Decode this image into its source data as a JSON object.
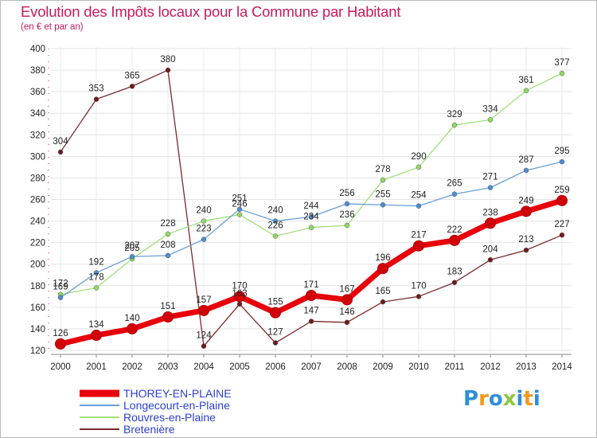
{
  "chart_data": {
    "type": "line",
    "title": "Evolution des Impôts locaux pour la Commune par Habitant",
    "subtitle": "(en € et par an)",
    "xlabel": "",
    "ylabel": "",
    "ylim": [
      120,
      400
    ],
    "yticks": [
      120,
      140,
      160,
      180,
      200,
      220,
      240,
      260,
      280,
      300,
      320,
      340,
      360,
      380,
      400
    ],
    "x": [
      "2000",
      "2001",
      "2002",
      "2003",
      "2004",
      "2005",
      "2006",
      "2007",
      "2008",
      "2009",
      "2010",
      "2011",
      "2012",
      "2013",
      "2014"
    ],
    "series": [
      {
        "name": "THOREY-EN-PLAINE",
        "color": "#e8000b",
        "values": [
          126,
          134,
          140,
          151,
          157,
          170,
          155,
          171,
          167,
          196,
          217,
          222,
          238,
          249,
          259
        ]
      },
      {
        "name": "Longecourt-en-Plaine",
        "color": "#6a9fd4",
        "values": [
          169,
          192,
          207,
          208,
          223,
          251,
          240,
          244,
          256,
          255,
          254,
          265,
          271,
          287,
          295
        ]
      },
      {
        "name": "Rouvres-en-Plaine",
        "color": "#9fe07a",
        "values": [
          172,
          178,
          205,
          228,
          240,
          246,
          226,
          234,
          236,
          278,
          290,
          329,
          334,
          361,
          377
        ]
      },
      {
        "name": "Bretenière",
        "color": "#7a2a2a",
        "values": [
          304,
          353,
          365,
          380,
          124,
          163,
          127,
          147,
          146,
          165,
          170,
          183,
          204,
          213,
          227
        ]
      }
    ],
    "grid": true,
    "legend_position": "bottom-left"
  },
  "logo": {
    "text": "Proxiti",
    "colors": [
      "#2f8fd8",
      "#f29a1f",
      "#2f8fd8",
      "#8dc63f",
      "#2f8fd8",
      "#f29a1f",
      "#2f8fd8"
    ]
  }
}
